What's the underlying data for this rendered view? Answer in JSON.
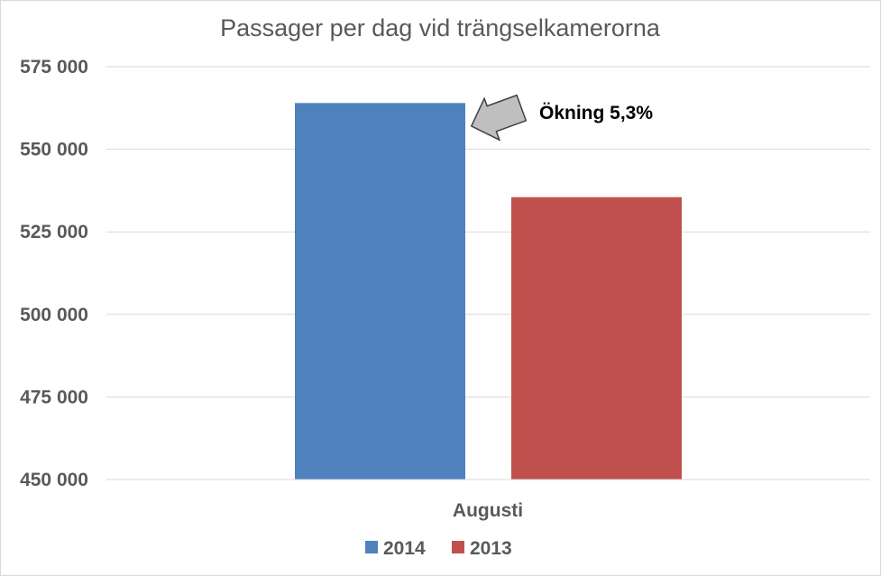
{
  "chart_data": {
    "type": "bar",
    "title": "Passager per dag vid trängselkamerorna",
    "xlabel": "",
    "ylabel": "",
    "categories": [
      "Augusti"
    ],
    "series": [
      {
        "name": "2014",
        "values": [
          564000
        ],
        "color": "#4f81bd"
      },
      {
        "name": "2013",
        "values": [
          535500
        ],
        "color": "#c0504d"
      }
    ],
    "ylim": [
      450000,
      575000
    ],
    "yticks": [
      450000,
      475000,
      500000,
      525000,
      550000,
      575000
    ],
    "ytick_labels": [
      "450 000",
      "475 000",
      "500 000",
      "525 000",
      "550 000",
      "575 000"
    ],
    "grid": true,
    "legend_position": "bottom",
    "annotation": {
      "text": "Ökning 5,3%",
      "arrow_color": "#bfbfbf",
      "target_series": "2014"
    }
  }
}
